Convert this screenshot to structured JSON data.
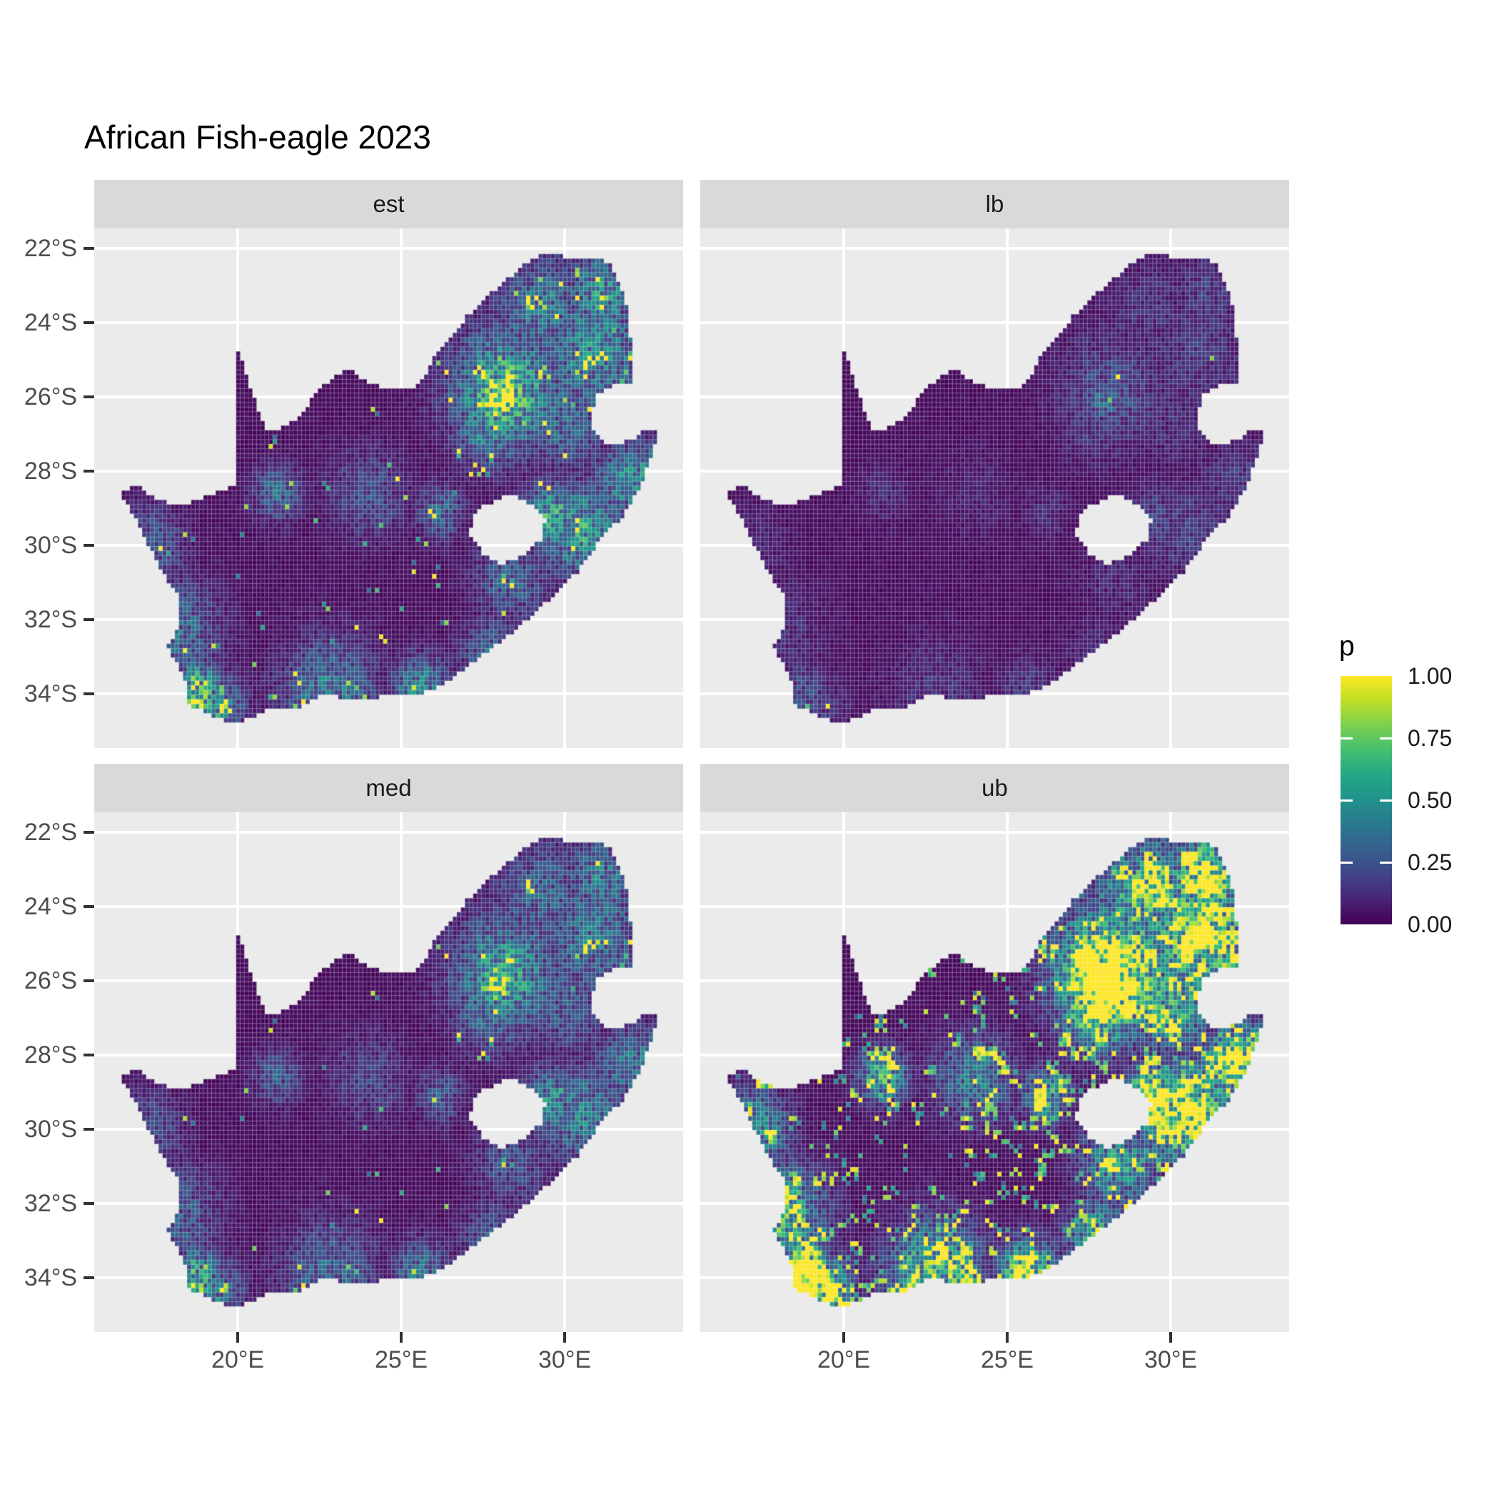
{
  "title": "African Fish-eagle 2023",
  "facets": [
    {
      "label": "est"
    },
    {
      "label": "lb"
    },
    {
      "label": "med"
    },
    {
      "label": "ub"
    }
  ],
  "axes": {
    "x": {
      "labels": [
        "20°E",
        "25°E",
        "30°E"
      ],
      "values": [
        20,
        25,
        30
      ]
    },
    "y": {
      "labels": [
        "22°S",
        "24°S",
        "26°S",
        "28°S",
        "30°S",
        "32°S",
        "34°S"
      ],
      "values": [
        22,
        24,
        26,
        28,
        30,
        32,
        34
      ]
    }
  },
  "legend": {
    "title": "p",
    "ticks": [
      {
        "label": "1.00",
        "value": 1.0
      },
      {
        "label": "0.75",
        "value": 0.75
      },
      {
        "label": "0.50",
        "value": 0.5
      },
      {
        "label": "0.25",
        "value": 0.25
      },
      {
        "label": "0.00",
        "value": 0.0
      }
    ]
  },
  "theme": {
    "background": "#FFFFFF",
    "panel_bg": "#EBEBEB",
    "strip_bg": "#D9D9D9",
    "grid_color": "#FFFFFF",
    "axis_text": "#4D4D4D",
    "strip_text": "#1A1A1A",
    "tick_color": "#333333",
    "na_fill": "#EBEBEB",
    "cell_lattice": "rgba(255,255,255,0.20)"
  },
  "chart_data": {
    "type": "heatmap",
    "title": "African Fish-eagle 2023",
    "region": "South Africa gridded occurrence probability raster, faceted by estimate type",
    "facet_names": [
      "est",
      "lb",
      "med",
      "ub"
    ],
    "legend": {
      "label": "p",
      "limits": [
        0,
        1
      ],
      "breaks": [
        0,
        0.25,
        0.5,
        0.75,
        1
      ]
    },
    "palette": "viridis",
    "x_axis": {
      "label_format": "degrees east",
      "breaks": [
        20,
        25,
        30
      ],
      "range": [
        15.61,
        33.62
      ]
    },
    "y_axis": {
      "label_format": "degrees south",
      "breaks": [
        -22,
        -24,
        -26,
        -28,
        -30,
        -32,
        -34
      ],
      "range": [
        -35.46,
        -21.46
      ]
    },
    "grid_on": true,
    "legend_position": "right",
    "grid_cell_deg": 0.125,
    "viridis_stops": [
      [
        68,
        1,
        84
      ],
      [
        72,
        36,
        117
      ],
      [
        65,
        68,
        135
      ],
      [
        53,
        95,
        141
      ],
      [
        42,
        120,
        142
      ],
      [
        33,
        145,
        140
      ],
      [
        34,
        168,
        132
      ],
      [
        68,
        190,
        112
      ],
      [
        122,
        209,
        81
      ],
      [
        189,
        223,
        38
      ],
      [
        253,
        231,
        37
      ]
    ],
    "facet_fields": [
      {
        "label": "est",
        "gain": 1.0,
        "speckle_p": 0.08,
        "speckle_a": 1.0,
        "speckle_c": 2.0
      },
      {
        "label": "lb",
        "gain": 0.3,
        "speckle_p": 0.012,
        "speckle_a": 0.25,
        "speckle_c": 8.0
      },
      {
        "label": "med",
        "gain": 0.8,
        "speckle_p": 0.05,
        "speckle_a": 1.0,
        "speckle_c": 2.0
      },
      {
        "label": "ub",
        "gain": 1.85,
        "speckle_p": 0.22,
        "speckle_a": 1.0,
        "speckle_c": 2.5
      }
    ],
    "hotspots": [
      [
        28.0,
        -26.05,
        0.45,
        1.05
      ],
      [
        28.2,
        -25.8,
        1.1,
        0.6
      ],
      [
        27.8,
        -26.65,
        0.8,
        0.45
      ],
      [
        30.9,
        -24.8,
        1.1,
        0.42
      ],
      [
        29.3,
        -23.6,
        1.0,
        0.34
      ],
      [
        31.1,
        -23.2,
        0.8,
        0.42
      ],
      [
        30.5,
        -29.6,
        0.9,
        0.45
      ],
      [
        31.9,
        -28.3,
        0.7,
        0.4
      ],
      [
        30.0,
        -26.6,
        0.9,
        0.3
      ],
      [
        29.6,
        -29.2,
        0.6,
        0.5
      ],
      [
        18.7,
        -33.95,
        0.55,
        0.65
      ],
      [
        19.3,
        -34.4,
        0.6,
        0.45
      ],
      [
        22.8,
        -34.0,
        1.0,
        0.35
      ],
      [
        25.6,
        -33.85,
        0.6,
        0.4
      ],
      [
        27.9,
        -33.0,
        0.7,
        0.3
      ],
      [
        21.2,
        -28.6,
        0.5,
        0.3
      ],
      [
        26.2,
        -29.1,
        0.5,
        0.28
      ],
      [
        28.4,
        -30.9,
        0.8,
        0.25
      ],
      [
        24.0,
        -28.6,
        0.8,
        0.2
      ],
      [
        32.4,
        -27.9,
        0.5,
        0.4
      ],
      [
        18.1,
        -32.3,
        0.9,
        0.3
      ],
      [
        17.3,
        -30.0,
        0.7,
        0.25
      ]
    ],
    "south_africa_outline": [
      [
        19.98,
        -24.75
      ],
      [
        20.2,
        -25.2
      ],
      [
        20.45,
        -25.9
      ],
      [
        20.7,
        -26.5
      ],
      [
        20.95,
        -26.95
      ],
      [
        21.35,
        -26.85
      ],
      [
        21.75,
        -26.65
      ],
      [
        22.2,
        -26.15
      ],
      [
        22.65,
        -25.7
      ],
      [
        23.05,
        -25.35
      ],
      [
        23.5,
        -25.32
      ],
      [
        23.95,
        -25.6
      ],
      [
        24.45,
        -25.75
      ],
      [
        24.95,
        -25.8
      ],
      [
        25.45,
        -25.72
      ],
      [
        25.8,
        -25.4
      ],
      [
        25.95,
        -24.9
      ],
      [
        26.35,
        -24.6
      ],
      [
        26.9,
        -23.95
      ],
      [
        27.35,
        -23.5
      ],
      [
        27.95,
        -23.05
      ],
      [
        28.55,
        -22.6
      ],
      [
        29.1,
        -22.22
      ],
      [
        29.55,
        -22.15
      ],
      [
        30.15,
        -22.25
      ],
      [
        30.75,
        -22.3
      ],
      [
        31.35,
        -22.35
      ],
      [
        31.6,
        -22.75
      ],
      [
        31.85,
        -23.35
      ],
      [
        31.98,
        -23.95
      ],
      [
        32.03,
        -24.7
      ],
      [
        32.05,
        -25.62
      ],
      [
        31.4,
        -25.72
      ],
      [
        30.97,
        -25.98
      ],
      [
        30.82,
        -26.45
      ],
      [
        30.87,
        -26.9
      ],
      [
        31.18,
        -27.22
      ],
      [
        31.62,
        -27.3
      ],
      [
        32.12,
        -27.1
      ],
      [
        32.46,
        -26.86
      ],
      [
        32.89,
        -26.86
      ],
      [
        32.62,
        -27.7
      ],
      [
        32.27,
        -28.5
      ],
      [
        31.78,
        -29.2
      ],
      [
        31.06,
        -29.9
      ],
      [
        30.36,
        -30.75
      ],
      [
        29.66,
        -31.35
      ],
      [
        28.86,
        -32.0
      ],
      [
        28.06,
        -32.6
      ],
      [
        27.12,
        -33.2
      ],
      [
        26.32,
        -33.75
      ],
      [
        25.66,
        -34.0
      ],
      [
        25.0,
        -33.98
      ],
      [
        24.2,
        -34.12
      ],
      [
        23.3,
        -34.1
      ],
      [
        22.5,
        -34.05
      ],
      [
        21.8,
        -34.42
      ],
      [
        20.9,
        -34.45
      ],
      [
        20.0,
        -34.82
      ],
      [
        19.25,
        -34.62
      ],
      [
        18.86,
        -34.4
      ],
      [
        18.4,
        -34.3
      ],
      [
        18.46,
        -33.85
      ],
      [
        18.26,
        -33.4
      ],
      [
        17.86,
        -32.75
      ],
      [
        18.26,
        -32.0
      ],
      [
        18.2,
        -31.4
      ],
      [
        17.6,
        -30.6
      ],
      [
        17.06,
        -29.6
      ],
      [
        16.45,
        -28.63
      ],
      [
        16.82,
        -28.3
      ],
      [
        17.4,
        -28.7
      ],
      [
        18.06,
        -28.9
      ],
      [
        18.8,
        -28.8
      ],
      [
        19.46,
        -28.52
      ],
      [
        19.98,
        -28.42
      ]
    ],
    "lesotho_hole": [
      [
        27.75,
        -28.85
      ],
      [
        28.35,
        -28.6
      ],
      [
        29.0,
        -28.9
      ],
      [
        29.42,
        -29.32
      ],
      [
        29.28,
        -29.85
      ],
      [
        28.72,
        -30.25
      ],
      [
        28.12,
        -30.52
      ],
      [
        27.56,
        -30.3
      ],
      [
        27.06,
        -29.65
      ],
      [
        27.32,
        -29.05
      ]
    ],
    "noise": {
      "value_jitter": [
        0.45,
        1.1
      ],
      "floor_noise": 0.045,
      "speckle_value": [
        0.3,
        1.0
      ]
    }
  }
}
